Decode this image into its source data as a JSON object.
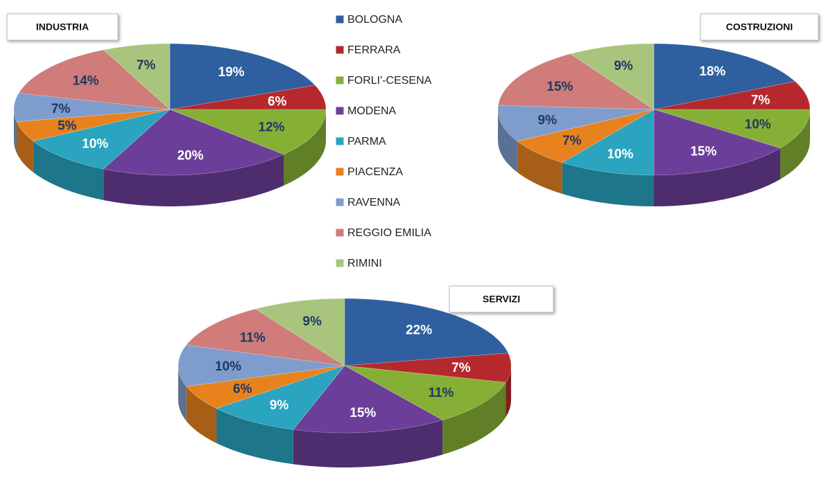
{
  "chart_data": {
    "type": "pie",
    "categories": [
      "BOLOGNA",
      "FERRARA",
      "FORLI'-CESENA",
      "MODENA",
      "PARMA",
      "PIACENZA",
      "RAVENNA",
      "REGGIO EMILIA",
      "RIMINI"
    ],
    "colors": [
      "#2f5f9f",
      "#b5292c",
      "#86b035",
      "#6b3f99",
      "#2aa4bf",
      "#e8821e",
      "#7e9dcc",
      "#cf7c7a",
      "#a9c57d"
    ],
    "series": [
      {
        "name": "INDUSTRIA",
        "values": [
          19,
          6,
          12,
          20,
          10,
          5,
          7,
          14,
          7
        ],
        "value_labels": [
          "19%",
          "6%",
          "12%",
          "20%",
          "10%",
          "5%",
          "7%",
          "14%",
          "7%"
        ]
      },
      {
        "name": "COSTRUZIONI",
        "values": [
          18,
          7,
          10,
          15,
          10,
          7,
          9,
          15,
          9
        ],
        "value_labels": [
          "18%",
          "7%",
          "10%",
          "15%",
          "10%",
          "7%",
          "9%",
          "15%",
          "9%"
        ]
      },
      {
        "name": "SERVIZI",
        "values": [
          22,
          7,
          11,
          15,
          9,
          6,
          10,
          11,
          9
        ],
        "value_labels": [
          "22%",
          "7%",
          "11%",
          "15%",
          "9%",
          "6%",
          "10%",
          "11%",
          "9%"
        ]
      }
    ]
  }
}
